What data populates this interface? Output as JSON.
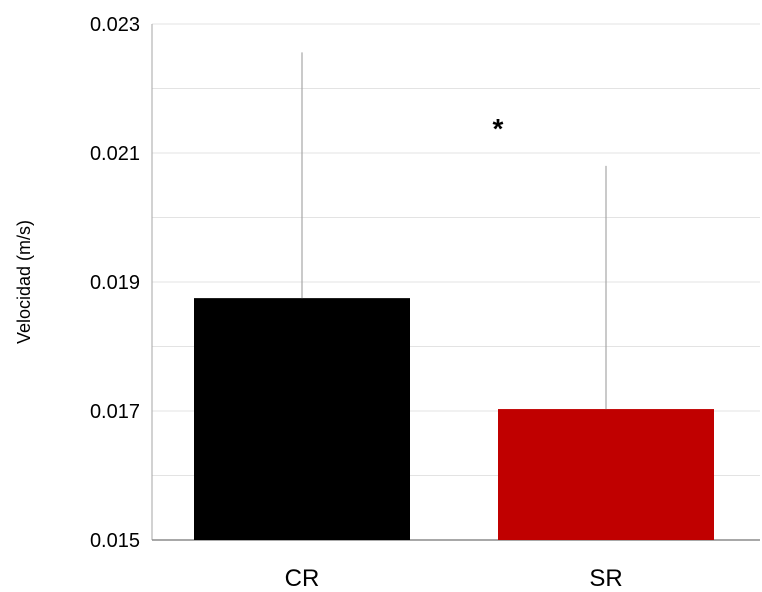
{
  "chart_data": {
    "type": "bar",
    "title": "",
    "xlabel": "",
    "ylabel": "Velocidad (m/s)",
    "ylim": [
      0.015,
      0.023
    ],
    "y_ticks": [
      "0.015",
      "0.017",
      "0.019",
      "0.021",
      "0.023"
    ],
    "y_tick_values": [
      0.015,
      0.017,
      0.019,
      0.021,
      0.023
    ],
    "minor_grid_values": [
      0.016,
      0.018,
      0.02,
      0.022
    ],
    "grid": true,
    "legend": "none",
    "categories": [
      "CR",
      "SR"
    ],
    "values": [
      0.01875,
      0.01703
    ],
    "error_upper": [
      0.02256,
      0.0208
    ],
    "colors": [
      "#000000",
      "#c00000"
    ],
    "annotation": "*"
  }
}
